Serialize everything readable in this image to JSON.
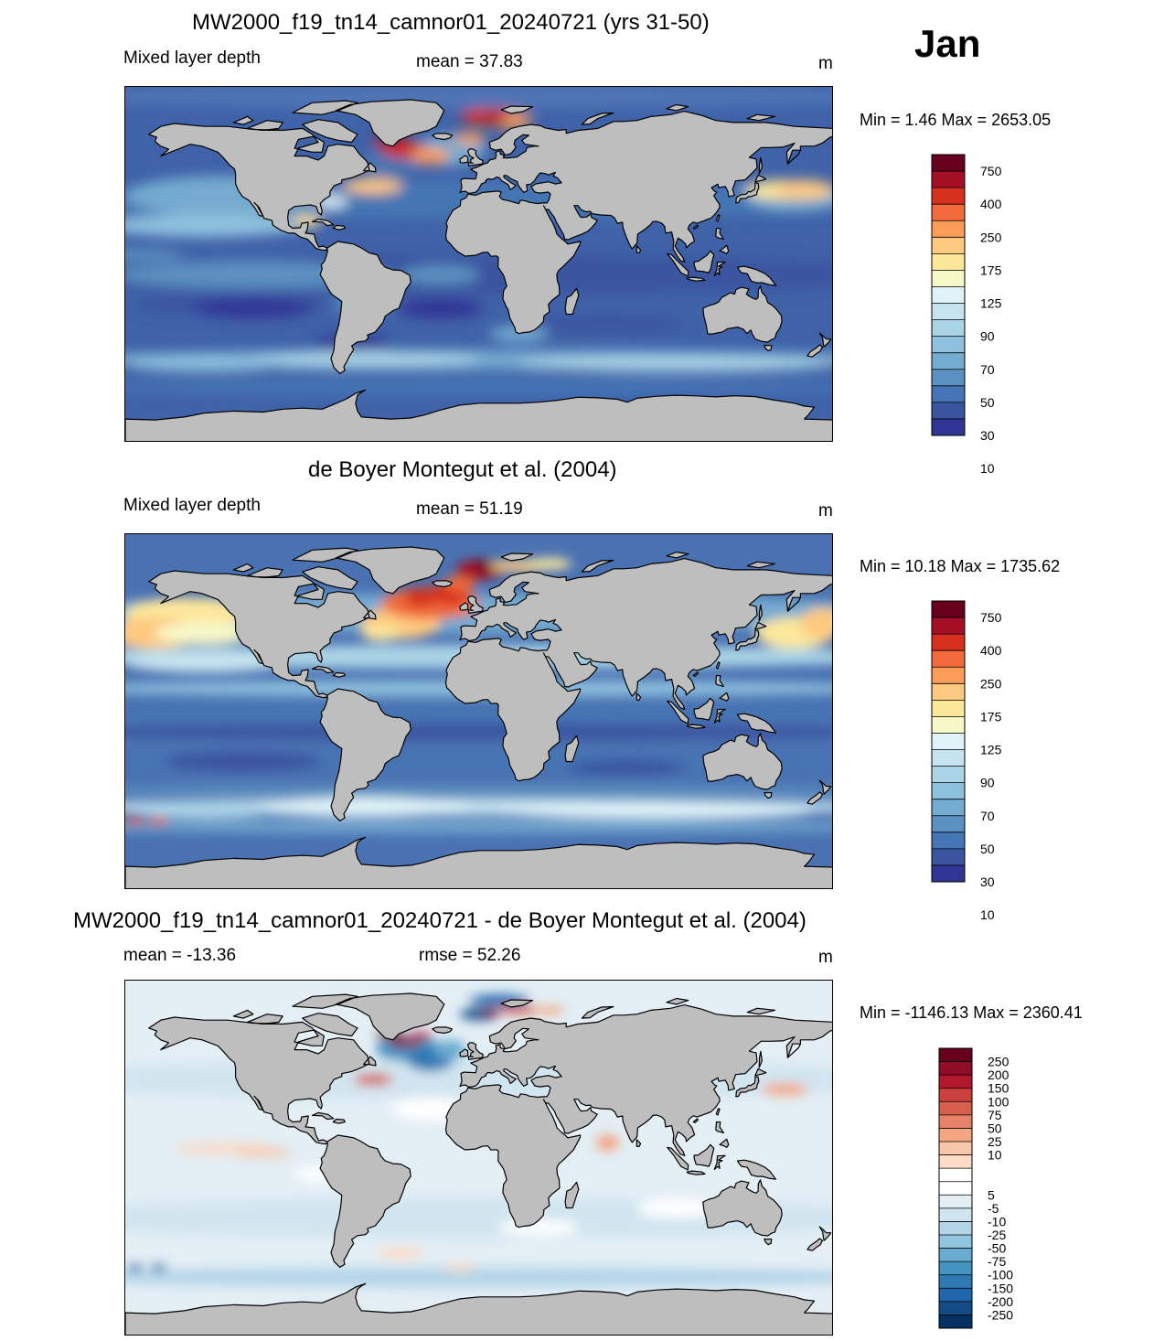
{
  "month": "Jan",
  "panels": [
    {
      "title": "MW2000_f19_tn14_camnor01_20240721 (yrs 31-50)",
      "left_label": "Mixed layer depth",
      "center_label": "mean =  37.83",
      "units": "m",
      "minmax": "Min =   1.46 Max = 2653.05",
      "colorbar": {
        "labels": [
          "750",
          "400",
          "250",
          "175",
          "125",
          "90",
          "70",
          "50",
          "30",
          "10"
        ],
        "colors": [
          "#67001f",
          "#a50f26",
          "#d7301f",
          "#f16a3b",
          "#fb9d59",
          "#fec980",
          "#fde79b",
          "#f7f7c7",
          "#e0f3f8",
          "#c6e4ef",
          "#abd4e6",
          "#8fc1de",
          "#74abd0",
          "#5b91c0",
          "#4575b4",
          "#3b55a0",
          "#313695"
        ]
      },
      "fields": "model"
    },
    {
      "title": "de Boyer Montegut et al. (2004)",
      "left_label": "Mixed layer depth",
      "center_label": "mean =  51.19",
      "units": "m",
      "minmax": "Min =  10.18 Max = 1735.62",
      "colorbar": {
        "labels": [
          "750",
          "400",
          "250",
          "175",
          "125",
          "90",
          "70",
          "50",
          "30",
          "10"
        ],
        "colors": [
          "#67001f",
          "#a50f26",
          "#d7301f",
          "#f16a3b",
          "#fb9d59",
          "#fec980",
          "#fde79b",
          "#f7f7c7",
          "#e0f3f8",
          "#c6e4ef",
          "#abd4e6",
          "#8fc1de",
          "#74abd0",
          "#5b91c0",
          "#4575b4",
          "#3b55a0",
          "#313695"
        ]
      },
      "fields": "obs"
    },
    {
      "title": "MW2000_f19_tn14_camnor01_20240721 - de Boyer Montegut et al. (2004)",
      "left_label": "mean = -13.36",
      "center_label": "rmse =  52.26",
      "units": "m",
      "minmax": "Min = -1146.13 Max = 2360.41",
      "colorbar": {
        "labels": [
          "250",
          "200",
          "150",
          "100",
          "75",
          "50",
          "25",
          "10",
          "5",
          "-5",
          "-10",
          "-25",
          "-50",
          "-75",
          "-100",
          "-150",
          "-200",
          "-250"
        ],
        "colors": [
          "#67001f",
          "#8e0c25",
          "#b2182b",
          "#c9403d",
          "#d6604d",
          "#e58267",
          "#f4a582",
          "#f8c6ab",
          "#fddbc7",
          "#ffffff",
          "#ffffff",
          "#e3eef5",
          "#d1e5f0",
          "#b4d5e8",
          "#92c5de",
          "#6aabd2",
          "#4393c3",
          "#2f79b5",
          "#2166ac",
          "#134c87",
          "#053061"
        ]
      },
      "fields": "diff"
    }
  ]
}
